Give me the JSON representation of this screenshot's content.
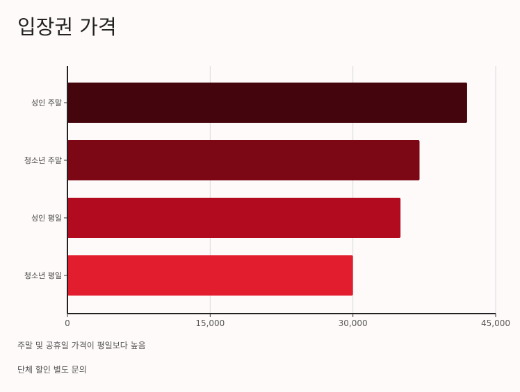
{
  "chart_data": {
    "type": "bar",
    "orientation": "horizontal",
    "title": "입장권 가격",
    "categories": [
      "성인 주말",
      "청소년 주말",
      "성인 평일",
      "청소년 평일"
    ],
    "values": [
      42000,
      37000,
      35000,
      30000
    ],
    "colors": [
      "#45050c",
      "#7c0815",
      "#b20a1e",
      "#e11d2e"
    ],
    "xlim": [
      0,
      45000
    ],
    "xticks": [
      0,
      15000,
      30000,
      45000
    ],
    "xtick_labels": [
      "0",
      "15,000",
      "30,000",
      "45,000"
    ],
    "grid": true,
    "legend": "none",
    "xlabel": "",
    "ylabel": ""
  },
  "notes": [
    "주말 및 공휴일 가격이 평일보다 높음",
    "단체 할인 별도 문의"
  ]
}
